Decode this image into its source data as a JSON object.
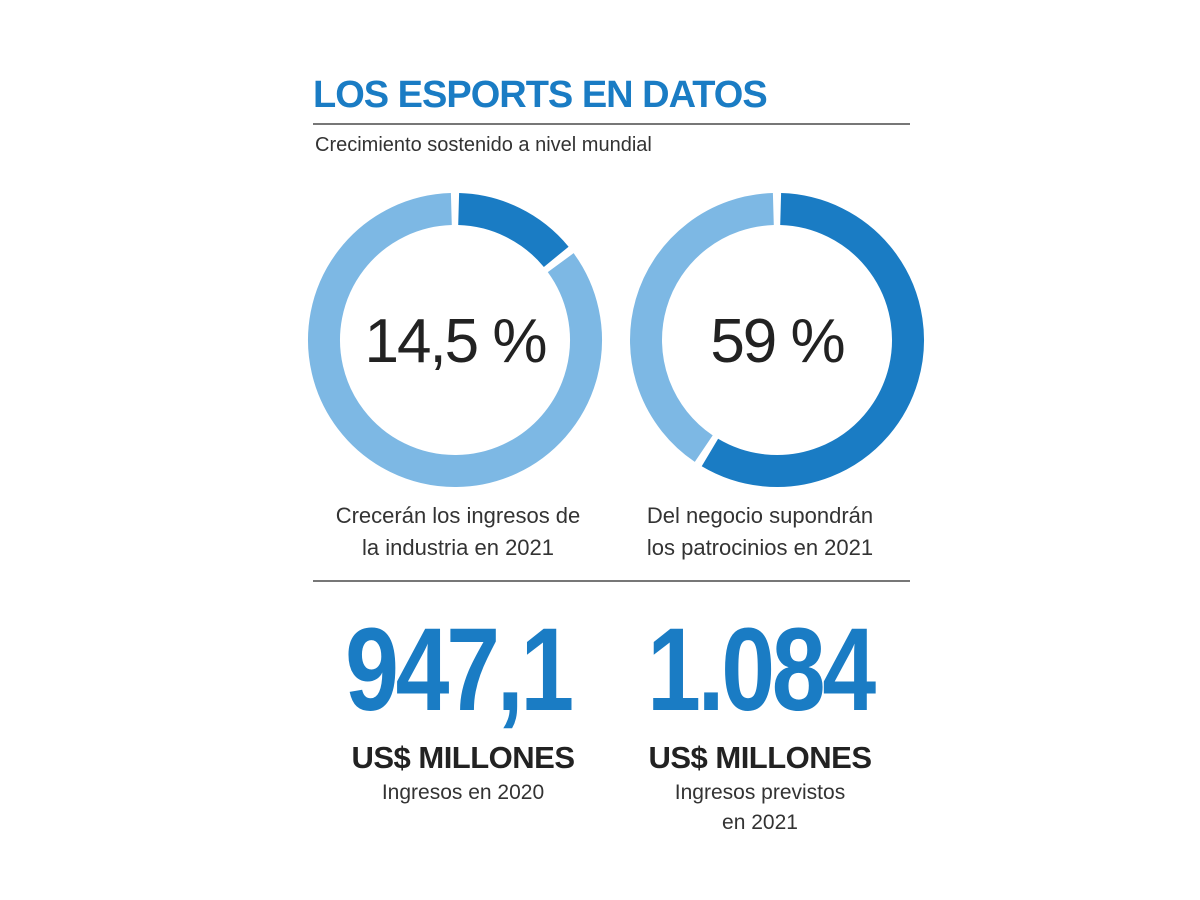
{
  "header": {
    "title": "LOS ESPORTS EN DATOS",
    "subtitle": "Crecimiento sostenido a nivel mundial"
  },
  "colors": {
    "accent": "#1a7cc4",
    "ring_light": "#7db8e4",
    "ring_dark": "#1a7cc4",
    "text": "#222222",
    "rule": "#777777"
  },
  "chart_data": [
    {
      "type": "pie",
      "variant": "donut",
      "value_percent": 14.5,
      "center_label": "14,5 %",
      "caption_lines": [
        "Crecerán los ingresos de",
        "la industria en 2021"
      ]
    },
    {
      "type": "pie",
      "variant": "donut",
      "value_percent": 59,
      "center_label": "59 %",
      "caption_lines": [
        "Del negocio supondrán",
        "los  patrocinios en 2021"
      ]
    }
  ],
  "stats": [
    {
      "value": "947,1",
      "unit": "US$ MILLONES",
      "note_lines": [
        "Ingresos en 2020"
      ]
    },
    {
      "value": "1.084",
      "unit": "US$ MILLONES",
      "note_lines": [
        "Ingresos previstos",
        "en 2021"
      ]
    }
  ]
}
